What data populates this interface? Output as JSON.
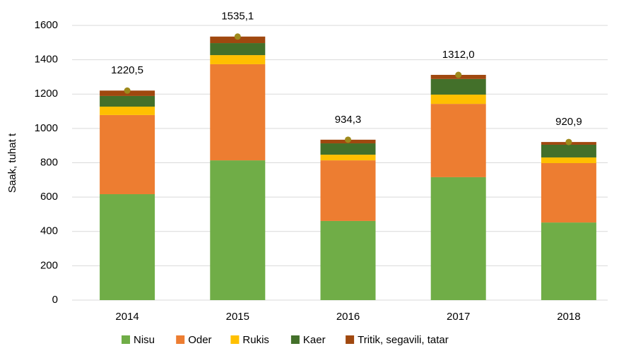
{
  "chart_data": {
    "type": "stacked_bar",
    "y_label": "Saak, tuhat t",
    "categories": [
      "2014",
      "2015",
      "2016",
      "2017",
      "2018"
    ],
    "series": [
      {
        "name": "Nisu",
        "color": "#70ad47",
        "values": [
          617,
          814,
          461,
          716,
          452
        ]
      },
      {
        "name": "Oder",
        "color": "#ed7d31",
        "values": [
          461,
          560,
          353,
          427,
          346
        ]
      },
      {
        "name": "Rukis",
        "color": "#ffc000",
        "values": [
          49,
          53,
          33,
          54,
          33
        ]
      },
      {
        "name": "Kaer",
        "color": "#43702a",
        "values": [
          62,
          70,
          66,
          91,
          74
        ]
      },
      {
        "name": "Tritik, segavili, tatar",
        "color": "#a0480f",
        "values": [
          31.5,
          38.1,
          21.3,
          24,
          15.9
        ]
      }
    ],
    "totals": {
      "color": "#9e8a1c",
      "values": [
        1220.5,
        1535.1,
        934.3,
        1312.0,
        920.9
      ],
      "value_labels": [
        "1220,5",
        "1535,1",
        "934,3",
        "1312,0",
        "920,9"
      ]
    },
    "ylim": [
      0,
      1600
    ],
    "yticks": [
      0,
      200,
      400,
      600,
      800,
      1000,
      1200,
      1400,
      1600
    ],
    "grid": true,
    "legend": "bottom"
  }
}
